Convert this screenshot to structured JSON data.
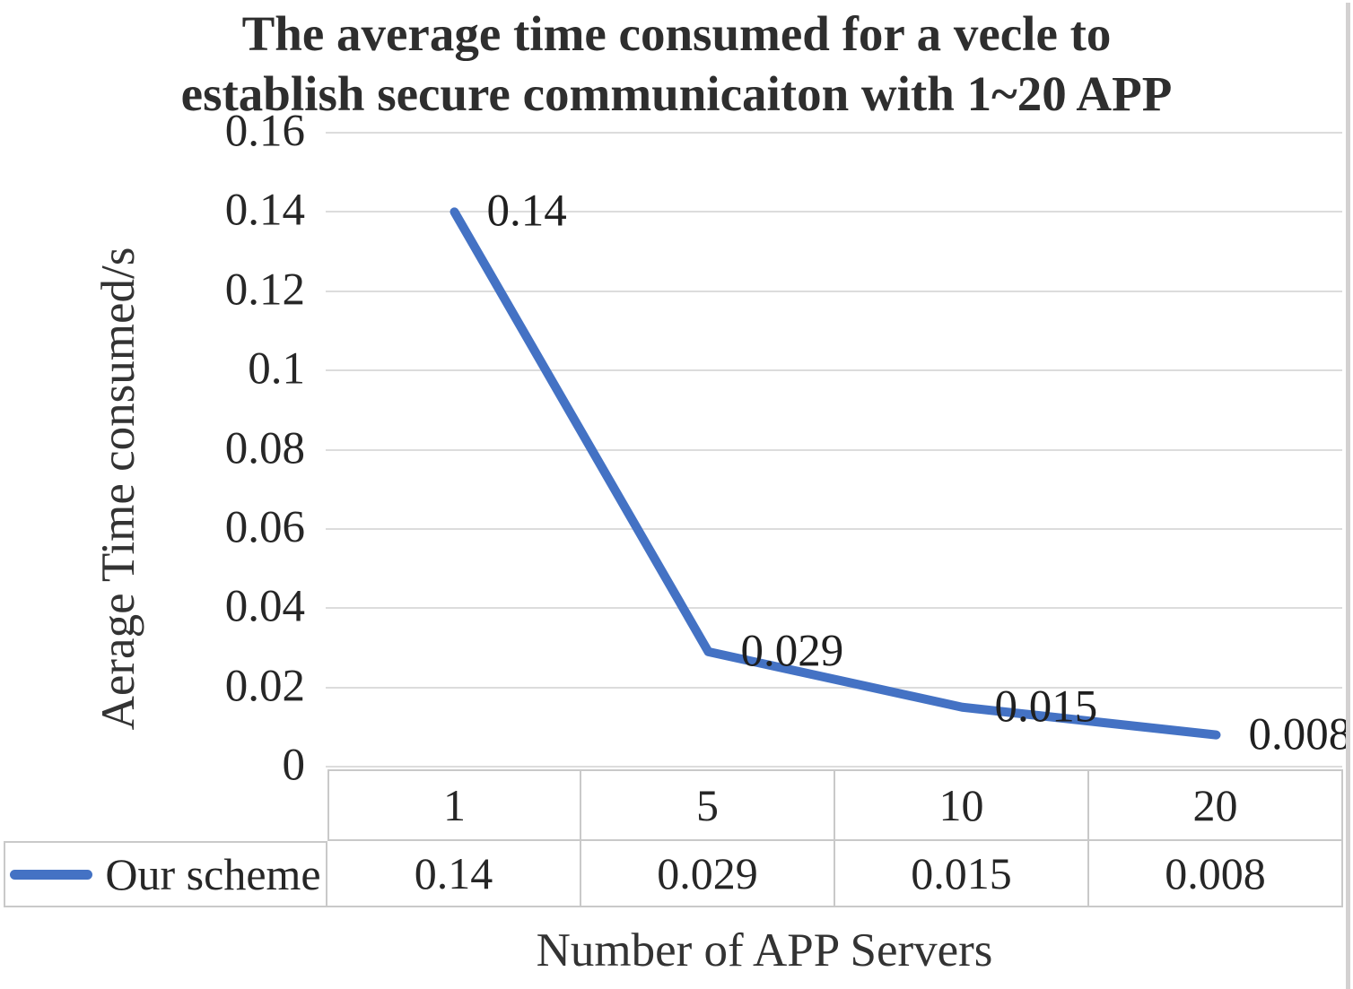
{
  "chart_data": {
    "type": "line",
    "title_line1": "The average time consumed for a vecle to",
    "title_line2": "establish secure communicaiton with 1~20 APP",
    "xlabel": "Number of APP Servers",
    "ylabel": "Aerage Time consumed/s",
    "categories": [
      "1",
      "5",
      "10",
      "20"
    ],
    "series": [
      {
        "name": "Our scheme",
        "color": "#4472C4",
        "values": [
          0.14,
          0.029,
          0.015,
          0.008
        ],
        "labels": [
          "0.14",
          "0.029",
          "0.015",
          "0.008"
        ]
      }
    ],
    "ylim": [
      0,
      0.16
    ],
    "yticks": [
      {
        "value": 0,
        "label": "0"
      },
      {
        "value": 0.02,
        "label": "0.02"
      },
      {
        "value": 0.04,
        "label": "0.04"
      },
      {
        "value": 0.06,
        "label": "0.06"
      },
      {
        "value": 0.08,
        "label": "0.08"
      },
      {
        "value": 0.1,
        "label": "0.1"
      },
      {
        "value": 0.12,
        "label": "0.12"
      },
      {
        "value": 0.14,
        "label": "0.14"
      },
      {
        "value": 0.16,
        "label": "0.16"
      }
    ],
    "grid": true,
    "legend_position": "table-bottom-left"
  },
  "colors": {
    "line": "#4472C4",
    "gridline": "#DCDCDC",
    "table_border": "#C9C9C9",
    "text": "#262626"
  }
}
